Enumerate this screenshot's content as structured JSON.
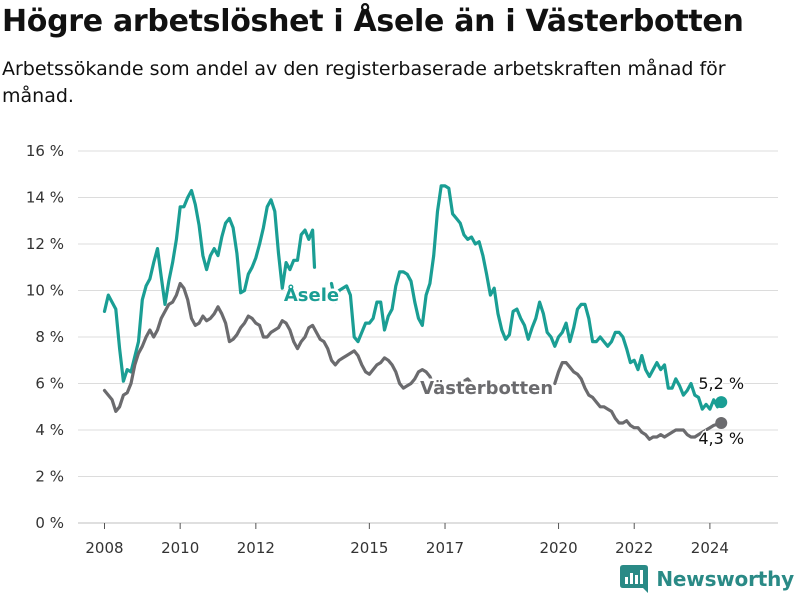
{
  "header": {
    "title": "Högre arbetslöshet i Åsele än i Västerbotten",
    "subtitle": "Arbetssökande som andel av den registerbaserade arbetskraften månad för månad."
  },
  "brand": {
    "name": "Newsworthy",
    "icon": "chart-logo-icon",
    "color": "#2a8a86"
  },
  "chart_data": {
    "type": "line",
    "title": "Högre arbetslöshet i Åsele än i Västerbotten",
    "subtitle": "Arbetssökande som andel av den registerbaserade arbetskraften månad för månad.",
    "xlabel": "",
    "ylabel": "",
    "ylim": [
      0,
      16
    ],
    "xlim": [
      2007.3,
      2025.8
    ],
    "y_ticks": [
      0,
      2,
      4,
      6,
      8,
      10,
      12,
      14,
      16
    ],
    "y_tick_labels": [
      "0 %",
      "2 %",
      "4 %",
      "6 %",
      "8 %",
      "10 %",
      "12 %",
      "14 %",
      "16 %"
    ],
    "x_ticks": [
      2008,
      2010,
      2012,
      2015,
      2017,
      2020,
      2022,
      2024
    ],
    "x_tick_labels": [
      "2008",
      "2010",
      "2012",
      "2015",
      "2017",
      "2020",
      "2022",
      "2024"
    ],
    "grid": true,
    "legend": "none",
    "series": [
      {
        "name": "Åsele",
        "color": "#1a9e94",
        "end_label": "5,2 %",
        "points": [
          [
            2008.0,
            9.1
          ],
          [
            2008.1,
            9.8
          ],
          [
            2008.3,
            9.2
          ],
          [
            2008.4,
            7.5
          ],
          [
            2008.5,
            6.1
          ],
          [
            2008.6,
            6.6
          ],
          [
            2008.7,
            6.5
          ],
          [
            2008.9,
            7.8
          ],
          [
            2009.0,
            9.6
          ],
          [
            2009.1,
            10.2
          ],
          [
            2009.2,
            10.5
          ],
          [
            2009.3,
            11.2
          ],
          [
            2009.4,
            11.8
          ],
          [
            2009.5,
            10.6
          ],
          [
            2009.6,
            9.4
          ],
          [
            2009.7,
            10.4
          ],
          [
            2009.8,
            11.2
          ],
          [
            2009.9,
            12.2
          ],
          [
            2010.0,
            13.6
          ],
          [
            2010.1,
            13.6
          ],
          [
            2010.2,
            14.0
          ],
          [
            2010.3,
            14.3
          ],
          [
            2010.4,
            13.7
          ],
          [
            2010.5,
            12.8
          ],
          [
            2010.6,
            11.5
          ],
          [
            2010.7,
            10.9
          ],
          [
            2010.8,
            11.5
          ],
          [
            2010.9,
            11.8
          ],
          [
            2011.0,
            11.5
          ],
          [
            2011.1,
            12.3
          ],
          [
            2011.2,
            12.9
          ],
          [
            2011.3,
            13.1
          ],
          [
            2011.4,
            12.7
          ],
          [
            2011.5,
            11.6
          ],
          [
            2011.6,
            9.9
          ],
          [
            2011.7,
            10.0
          ],
          [
            2011.8,
            10.7
          ],
          [
            2011.9,
            11.0
          ],
          [
            2012.0,
            11.4
          ],
          [
            2012.1,
            12.0
          ],
          [
            2012.2,
            12.7
          ],
          [
            2012.3,
            13.6
          ],
          [
            2012.4,
            13.9
          ],
          [
            2012.5,
            13.4
          ],
          [
            2012.6,
            11.6
          ],
          [
            2012.7,
            10.1
          ],
          [
            2012.8,
            11.2
          ],
          [
            2012.9,
            10.9
          ],
          [
            2013.0,
            11.3
          ],
          [
            2013.1,
            11.3
          ],
          [
            2013.2,
            12.4
          ],
          [
            2013.3,
            12.6
          ],
          [
            2013.4,
            12.2
          ],
          [
            2013.5,
            12.6
          ],
          [
            2013.55,
            11.0
          ],
          [
            2014.0,
            10.3
          ],
          [
            2014.1,
            9.5
          ],
          [
            2014.2,
            10.0
          ],
          [
            2014.4,
            10.2
          ],
          [
            2014.5,
            9.8
          ],
          [
            2014.6,
            8.0
          ],
          [
            2014.7,
            7.8
          ],
          [
            2014.8,
            8.2
          ],
          [
            2014.9,
            8.6
          ],
          [
            2015.0,
            8.6
          ],
          [
            2015.1,
            8.8
          ],
          [
            2015.2,
            9.5
          ],
          [
            2015.3,
            9.5
          ],
          [
            2015.4,
            8.3
          ],
          [
            2015.5,
            8.9
          ],
          [
            2015.6,
            9.2
          ],
          [
            2015.7,
            10.2
          ],
          [
            2015.8,
            10.8
          ],
          [
            2015.9,
            10.8
          ],
          [
            2016.0,
            10.7
          ],
          [
            2016.1,
            10.4
          ],
          [
            2016.2,
            9.5
          ],
          [
            2016.3,
            8.8
          ],
          [
            2016.4,
            8.5
          ],
          [
            2016.5,
            9.8
          ],
          [
            2016.6,
            10.3
          ],
          [
            2016.7,
            11.5
          ],
          [
            2016.8,
            13.4
          ],
          [
            2016.9,
            14.5
          ],
          [
            2017.0,
            14.5
          ],
          [
            2017.1,
            14.4
          ],
          [
            2017.2,
            13.3
          ],
          [
            2017.3,
            13.1
          ],
          [
            2017.4,
            12.9
          ],
          [
            2017.5,
            12.4
          ],
          [
            2017.6,
            12.2
          ],
          [
            2017.7,
            12.3
          ],
          [
            2017.8,
            12.0
          ],
          [
            2017.9,
            12.1
          ],
          [
            2018.0,
            11.5
          ],
          [
            2018.1,
            10.7
          ],
          [
            2018.2,
            9.8
          ],
          [
            2018.3,
            10.1
          ],
          [
            2018.4,
            9.0
          ],
          [
            2018.5,
            8.3
          ],
          [
            2018.6,
            7.9
          ],
          [
            2018.7,
            8.1
          ],
          [
            2018.8,
            9.1
          ],
          [
            2018.9,
            9.2
          ],
          [
            2019.0,
            8.8
          ],
          [
            2019.1,
            8.5
          ],
          [
            2019.2,
            7.9
          ],
          [
            2019.3,
            8.4
          ],
          [
            2019.4,
            8.8
          ],
          [
            2019.5,
            9.5
          ],
          [
            2019.6,
            9.0
          ],
          [
            2019.7,
            8.2
          ],
          [
            2019.8,
            8.0
          ],
          [
            2019.9,
            7.6
          ],
          [
            2020.0,
            8.0
          ],
          [
            2020.1,
            8.2
          ],
          [
            2020.2,
            8.6
          ],
          [
            2020.3,
            7.8
          ],
          [
            2020.4,
            8.4
          ],
          [
            2020.5,
            9.2
          ],
          [
            2020.6,
            9.4
          ],
          [
            2020.7,
            9.4
          ],
          [
            2020.8,
            8.8
          ],
          [
            2020.9,
            7.8
          ],
          [
            2021.0,
            7.8
          ],
          [
            2021.1,
            8.0
          ],
          [
            2021.2,
            7.8
          ],
          [
            2021.3,
            7.6
          ],
          [
            2021.4,
            7.8
          ],
          [
            2021.5,
            8.2
          ],
          [
            2021.6,
            8.2
          ],
          [
            2021.7,
            8.0
          ],
          [
            2021.8,
            7.5
          ],
          [
            2021.9,
            6.9
          ],
          [
            2022.0,
            7.0
          ],
          [
            2022.1,
            6.6
          ],
          [
            2022.2,
            7.2
          ],
          [
            2022.3,
            6.6
          ],
          [
            2022.4,
            6.3
          ],
          [
            2022.5,
            6.6
          ],
          [
            2022.6,
            6.9
          ],
          [
            2022.7,
            6.6
          ],
          [
            2022.8,
            6.8
          ],
          [
            2022.9,
            5.8
          ],
          [
            2023.0,
            5.8
          ],
          [
            2023.1,
            6.2
          ],
          [
            2023.2,
            5.9
          ],
          [
            2023.3,
            5.5
          ],
          [
            2023.4,
            5.7
          ],
          [
            2023.5,
            6.0
          ],
          [
            2023.6,
            5.5
          ],
          [
            2023.7,
            5.4
          ],
          [
            2023.8,
            4.9
          ],
          [
            2023.9,
            5.1
          ],
          [
            2024.0,
            4.9
          ],
          [
            2024.1,
            5.3
          ],
          [
            2024.2,
            5.0
          ],
          [
            2024.3,
            5.2
          ]
        ]
      },
      {
        "name": "Västerbotten",
        "color": "#6b6b6e",
        "end_label": "4,3 %",
        "points": [
          [
            2008.0,
            5.7
          ],
          [
            2008.1,
            5.5
          ],
          [
            2008.2,
            5.3
          ],
          [
            2008.3,
            4.8
          ],
          [
            2008.4,
            5.0
          ],
          [
            2008.5,
            5.5
          ],
          [
            2008.6,
            5.6
          ],
          [
            2008.7,
            6.0
          ],
          [
            2008.8,
            6.8
          ],
          [
            2008.9,
            7.3
          ],
          [
            2009.0,
            7.6
          ],
          [
            2009.1,
            8.0
          ],
          [
            2009.2,
            8.3
          ],
          [
            2009.3,
            8.0
          ],
          [
            2009.4,
            8.3
          ],
          [
            2009.5,
            8.8
          ],
          [
            2009.6,
            9.1
          ],
          [
            2009.7,
            9.4
          ],
          [
            2009.8,
            9.5
          ],
          [
            2009.9,
            9.8
          ],
          [
            2010.0,
            10.3
          ],
          [
            2010.1,
            10.1
          ],
          [
            2010.2,
            9.6
          ],
          [
            2010.3,
            8.8
          ],
          [
            2010.4,
            8.5
          ],
          [
            2010.5,
            8.6
          ],
          [
            2010.6,
            8.9
          ],
          [
            2010.7,
            8.7
          ],
          [
            2010.8,
            8.8
          ],
          [
            2010.9,
            9.0
          ],
          [
            2011.0,
            9.3
          ],
          [
            2011.1,
            9.0
          ],
          [
            2011.2,
            8.6
          ],
          [
            2011.3,
            7.8
          ],
          [
            2011.4,
            7.9
          ],
          [
            2011.5,
            8.1
          ],
          [
            2011.6,
            8.4
          ],
          [
            2011.7,
            8.6
          ],
          [
            2011.8,
            8.9
          ],
          [
            2011.9,
            8.8
          ],
          [
            2012.0,
            8.6
          ],
          [
            2012.1,
            8.5
          ],
          [
            2012.2,
            8.0
          ],
          [
            2012.3,
            8.0
          ],
          [
            2012.4,
            8.2
          ],
          [
            2012.5,
            8.3
          ],
          [
            2012.6,
            8.4
          ],
          [
            2012.7,
            8.7
          ],
          [
            2012.8,
            8.6
          ],
          [
            2012.9,
            8.3
          ],
          [
            2013.0,
            7.8
          ],
          [
            2013.1,
            7.5
          ],
          [
            2013.2,
            7.8
          ],
          [
            2013.3,
            8.0
          ],
          [
            2013.4,
            8.4
          ],
          [
            2013.5,
            8.5
          ],
          [
            2013.6,
            8.2
          ],
          [
            2013.7,
            7.9
          ],
          [
            2013.8,
            7.8
          ],
          [
            2013.9,
            7.5
          ],
          [
            2014.0,
            7.0
          ],
          [
            2014.1,
            6.8
          ],
          [
            2014.2,
            7.0
          ],
          [
            2014.3,
            7.1
          ],
          [
            2014.4,
            7.2
          ],
          [
            2014.5,
            7.3
          ],
          [
            2014.6,
            7.4
          ],
          [
            2014.7,
            7.2
          ],
          [
            2014.8,
            6.8
          ],
          [
            2014.9,
            6.5
          ],
          [
            2015.0,
            6.4
          ],
          [
            2015.1,
            6.6
          ],
          [
            2015.2,
            6.8
          ],
          [
            2015.3,
            6.9
          ],
          [
            2015.4,
            7.1
          ],
          [
            2015.5,
            7.0
          ],
          [
            2015.6,
            6.8
          ],
          [
            2015.7,
            6.5
          ],
          [
            2015.8,
            6.0
          ],
          [
            2015.9,
            5.8
          ],
          [
            2016.0,
            5.9
          ],
          [
            2016.1,
            6.0
          ],
          [
            2016.2,
            6.2
          ],
          [
            2016.3,
            6.5
          ],
          [
            2016.4,
            6.6
          ],
          [
            2016.5,
            6.5
          ],
          [
            2016.6,
            6.3
          ],
          [
            2016.65,
            6.1
          ],
          [
            2017.4,
            6.0
          ],
          [
            2017.5,
            6.1
          ],
          [
            2017.6,
            6.2
          ],
          [
            2017.7,
            6.0
          ],
          [
            2018.9,
            5.9
          ],
          [
            2019.0,
            5.8
          ],
          [
            2019.9,
            6.0
          ],
          [
            2020.0,
            6.5
          ],
          [
            2020.1,
            6.9
          ],
          [
            2020.2,
            6.9
          ],
          [
            2020.3,
            6.7
          ],
          [
            2020.4,
            6.5
          ],
          [
            2020.5,
            6.4
          ],
          [
            2020.6,
            6.2
          ],
          [
            2020.7,
            5.8
          ],
          [
            2020.8,
            5.5
          ],
          [
            2020.9,
            5.4
          ],
          [
            2021.0,
            5.2
          ],
          [
            2021.1,
            5.0
          ],
          [
            2021.2,
            5.0
          ],
          [
            2021.3,
            4.9
          ],
          [
            2021.4,
            4.8
          ],
          [
            2021.5,
            4.5
          ],
          [
            2021.6,
            4.3
          ],
          [
            2021.7,
            4.3
          ],
          [
            2021.8,
            4.4
          ],
          [
            2021.9,
            4.2
          ],
          [
            2022.0,
            4.1
          ],
          [
            2022.1,
            4.1
          ],
          [
            2022.2,
            3.9
          ],
          [
            2022.3,
            3.8
          ],
          [
            2022.4,
            3.6
          ],
          [
            2022.5,
            3.7
          ],
          [
            2022.6,
            3.7
          ],
          [
            2022.7,
            3.8
          ],
          [
            2022.8,
            3.7
          ],
          [
            2022.9,
            3.8
          ],
          [
            2023.0,
            3.9
          ],
          [
            2023.1,
            4.0
          ],
          [
            2023.2,
            4.0
          ],
          [
            2023.3,
            4.0
          ],
          [
            2023.4,
            3.8
          ],
          [
            2023.5,
            3.7
          ],
          [
            2023.6,
            3.7
          ],
          [
            2023.7,
            3.8
          ],
          [
            2023.8,
            3.9
          ],
          [
            2023.9,
            4.0
          ],
          [
            2024.0,
            4.1
          ],
          [
            2024.1,
            4.2
          ],
          [
            2024.3,
            4.3
          ]
        ]
      }
    ],
    "annotations": [
      {
        "text": "Åsele",
        "series": "Åsele"
      },
      {
        "text": "Västerbotten",
        "series": "Västerbotten"
      }
    ]
  }
}
